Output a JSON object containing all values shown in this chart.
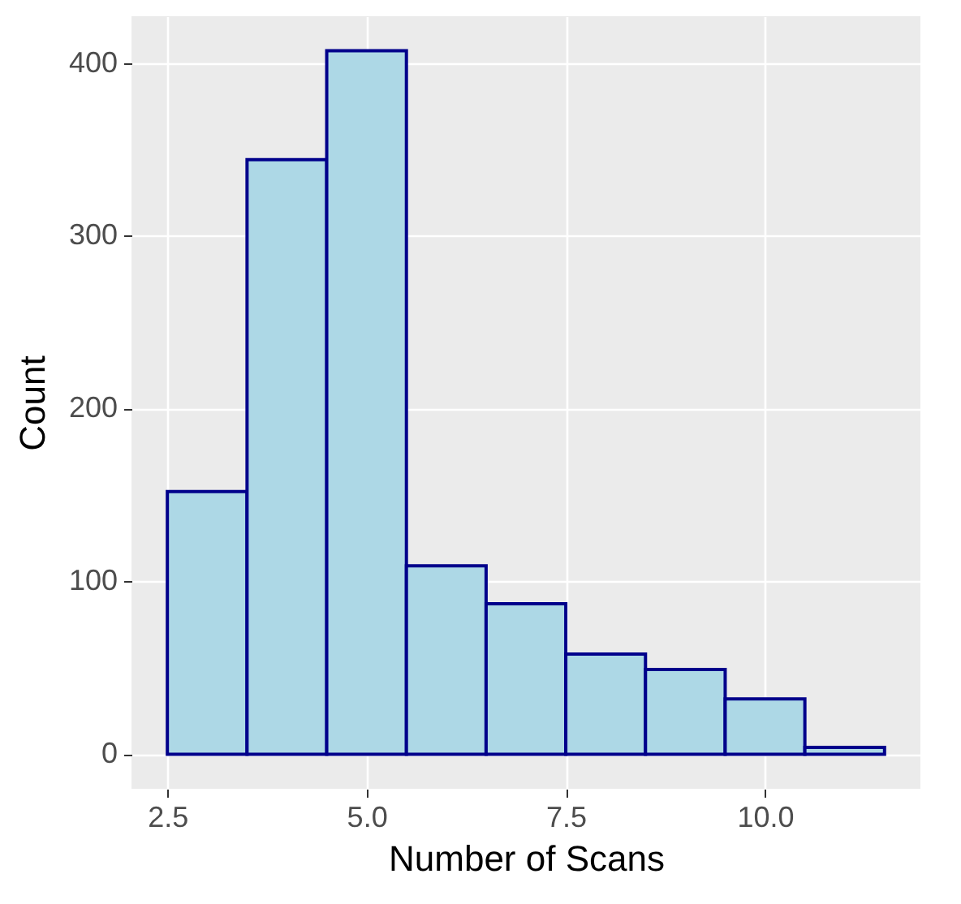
{
  "chart_data": {
    "type": "histogram",
    "xlabel": "Number of Scans",
    "ylabel": "Count",
    "bins": [
      2.5,
      3.5,
      4.5,
      5.5,
      6.5,
      7.5,
      8.5,
      9.5,
      10.5,
      11.5
    ],
    "values": [
      152,
      344,
      407,
      109,
      87,
      58,
      49,
      32,
      4
    ],
    "color": "#add8e6",
    "xlim": [
      2.05,
      11.95
    ],
    "xticks": [
      {
        "value": 2.5,
        "label": "2.5"
      },
      {
        "value": 5,
        "label": "5.0"
      },
      {
        "value": 7.5,
        "label": "7.5"
      },
      {
        "value": 10,
        "label": "10.0"
      }
    ],
    "ylim": [
      -20,
      427
    ],
    "yticks": [
      0,
      100,
      200,
      300,
      400
    ],
    "grid": true
  }
}
